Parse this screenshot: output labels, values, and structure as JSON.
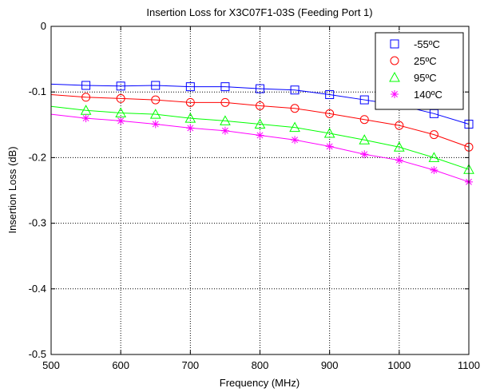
{
  "chart_data": {
    "type": "line",
    "title": "Insertion Loss for X3C07F1-03S (Feeding Port 1)",
    "xlabel": "Frequency (MHz)",
    "ylabel": "Insertion Loss (dB)",
    "xlim": [
      500,
      1100
    ],
    "ylim": [
      -0.5,
      0
    ],
    "x_ticks": [
      500,
      600,
      700,
      800,
      900,
      1000,
      1100
    ],
    "y_ticks": [
      0,
      -0.1,
      -0.2,
      -0.3,
      -0.4,
      -0.5
    ],
    "x_tick_labels": [
      "500",
      "600",
      "700",
      "800",
      "900",
      "1000",
      "1100"
    ],
    "y_tick_labels": [
      "0",
      "-0.1",
      "-0.2",
      "-0.3",
      "-0.4",
      "-0.5"
    ],
    "grid": true,
    "legend_position": "top-right",
    "x": [
      500,
      550,
      600,
      650,
      700,
      750,
      800,
      850,
      900,
      950,
      1000,
      1050,
      1100
    ],
    "series": [
      {
        "name": "-55ºC",
        "color": "#0000ff",
        "marker": "square",
        "values": [
          -0.088,
          -0.09,
          -0.091,
          -0.09,
          -0.092,
          -0.092,
          -0.095,
          -0.097,
          -0.104,
          -0.112,
          -0.12,
          -0.133,
          -0.149
        ]
      },
      {
        "name": "25ºC",
        "color": "#ff0000",
        "marker": "circle",
        "values": [
          -0.104,
          -0.108,
          -0.11,
          -0.112,
          -0.116,
          -0.116,
          -0.121,
          -0.125,
          -0.133,
          -0.142,
          -0.151,
          -0.165,
          -0.184
        ]
      },
      {
        "name": "95ºC",
        "color": "#00ff00",
        "marker": "triangle",
        "values": [
          -0.122,
          -0.128,
          -0.132,
          -0.134,
          -0.14,
          -0.144,
          -0.149,
          -0.154,
          -0.163,
          -0.173,
          -0.184,
          -0.2,
          -0.218
        ]
      },
      {
        "name": "140ºC",
        "color": "#ff00ff",
        "marker": "asterisk",
        "values": [
          -0.134,
          -0.14,
          -0.144,
          -0.149,
          -0.155,
          -0.159,
          -0.166,
          -0.173,
          -0.183,
          -0.195,
          -0.204,
          -0.219,
          -0.237
        ]
      }
    ]
  }
}
